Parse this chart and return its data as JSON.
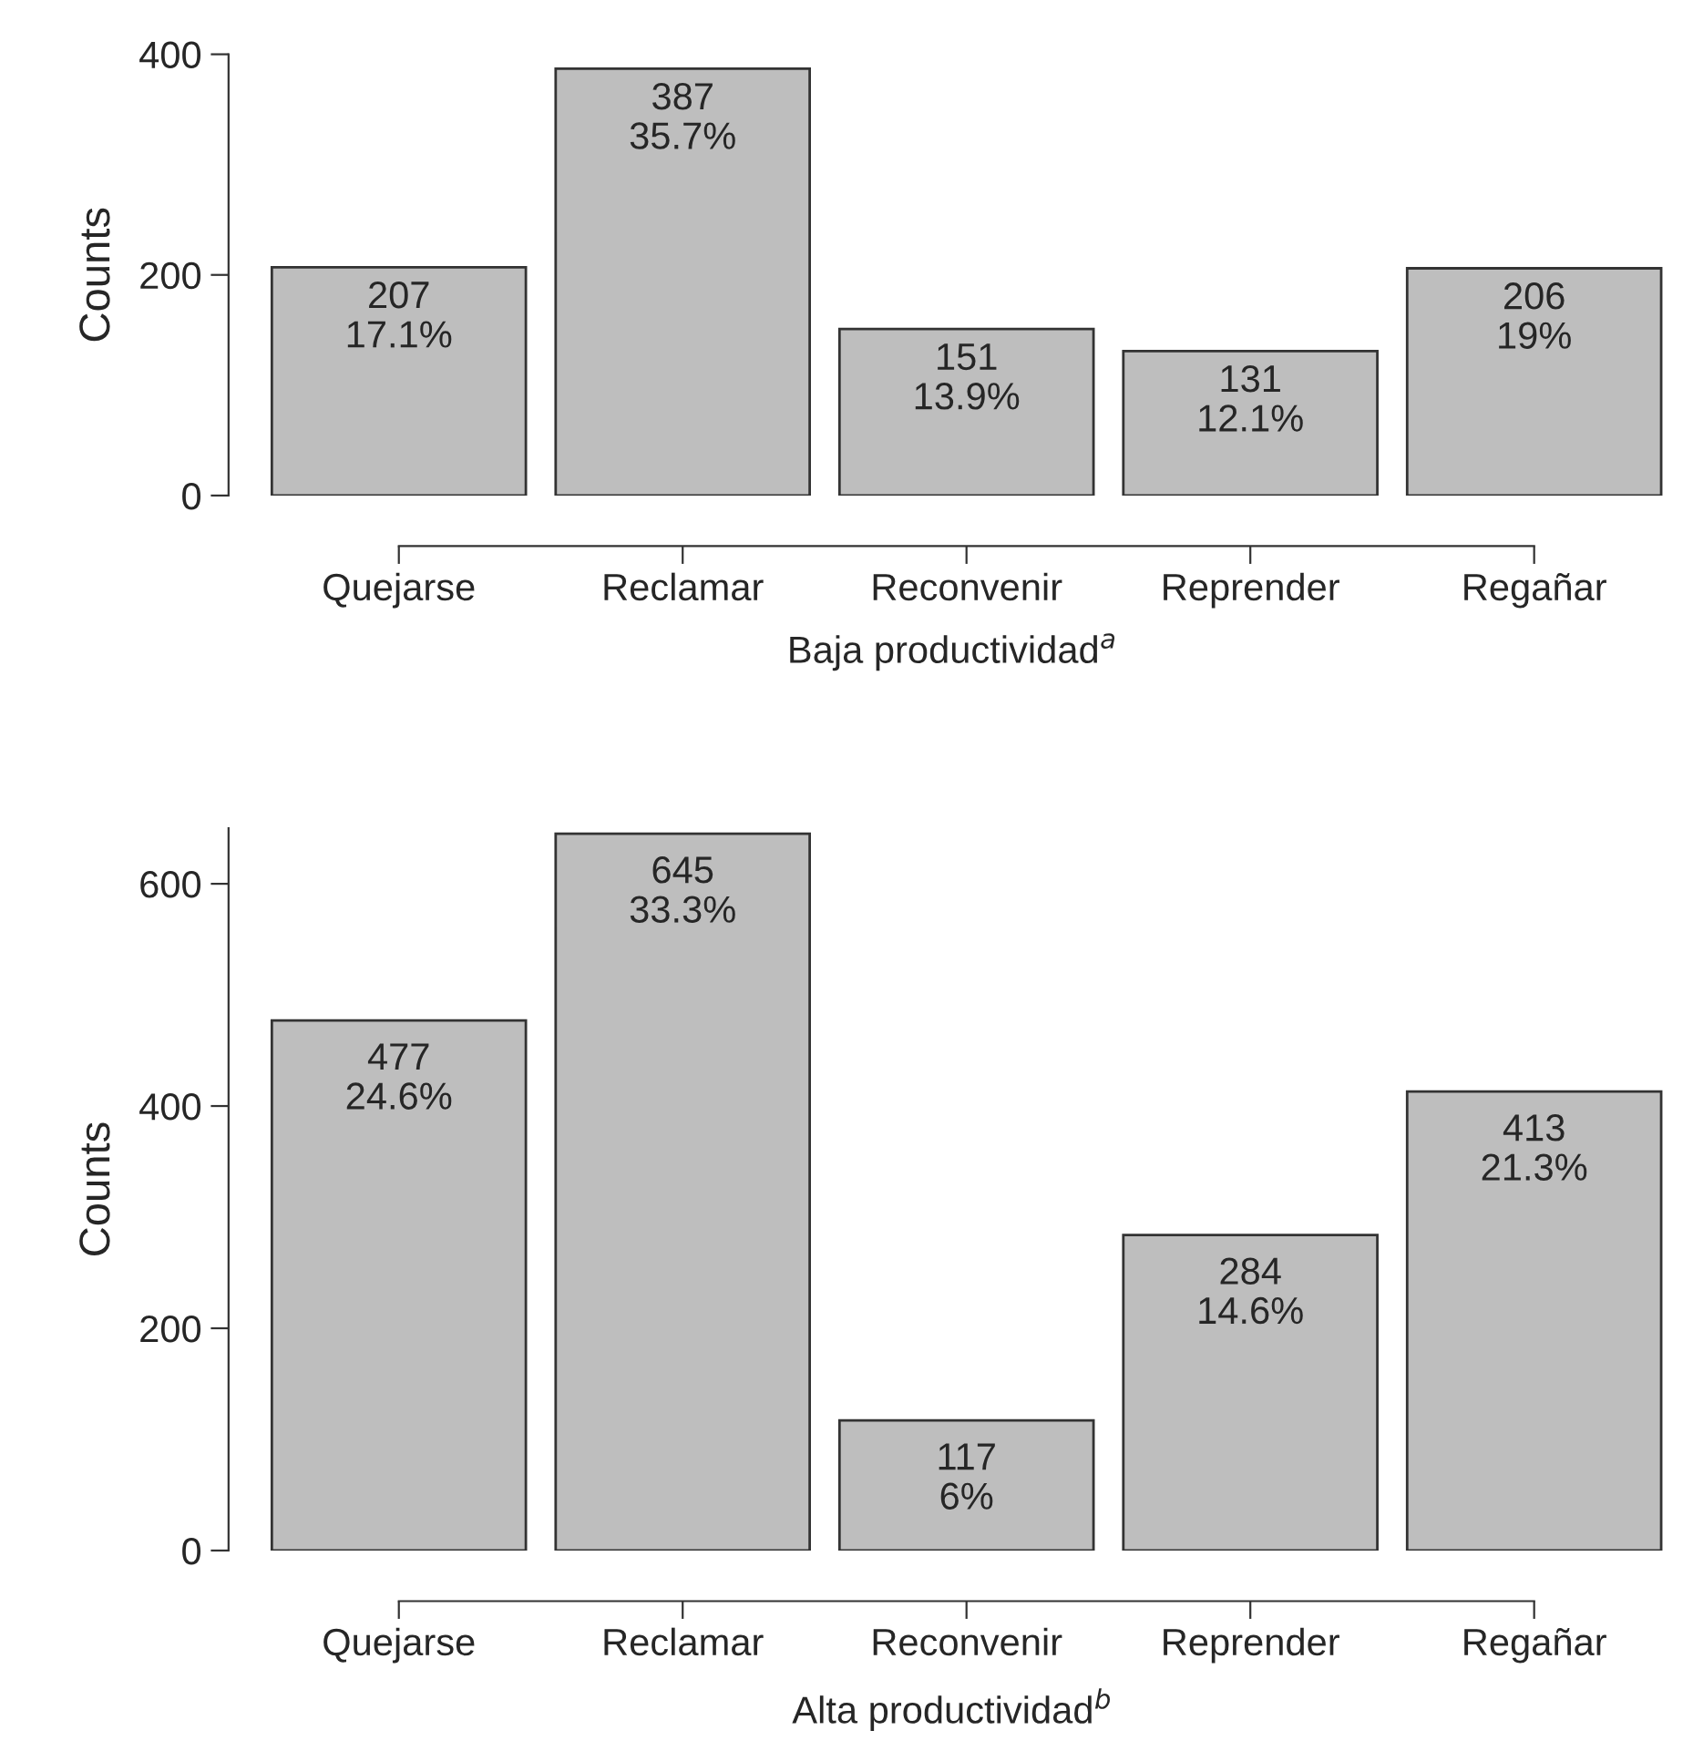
{
  "chart_data": [
    {
      "type": "bar",
      "categories": [
        "Quejarse",
        "Reclamar",
        "Reconvenir",
        "Reprender",
        "Regañar"
      ],
      "values": [
        207,
        387,
        151,
        131,
        206
      ],
      "color": "#bebebe",
      "value_labels": [
        "207\n17.1%",
        "387\n35.7%",
        "151\n13.9%",
        "131\n12.1%",
        "206\n19%"
      ],
      "xlabel": "Baja productividad$^{a}$",
      "ylabel": "Counts",
      "ylim": [
        0,
        400
      ],
      "yticks": [
        0,
        200,
        400
      ],
      "grid": false,
      "legend": false
    },
    {
      "type": "bar",
      "categories": [
        "Quejarse",
        "Reclamar",
        "Reconvenir",
        "Reprender",
        "Regañar"
      ],
      "values": [
        477,
        645,
        117,
        284,
        413
      ],
      "color": "#bebebe",
      "value_labels": [
        "477\n24.6%",
        "645\n33.3%",
        "117\n6%",
        "284\n14.6%",
        "413\n21.3%"
      ],
      "xlabel": "Alta productividad$^{b}$",
      "ylabel": "Counts",
      "ylim": [
        0,
        650
      ],
      "yticks": [
        0,
        200,
        400,
        600
      ],
      "grid": false,
      "legend": false
    }
  ]
}
